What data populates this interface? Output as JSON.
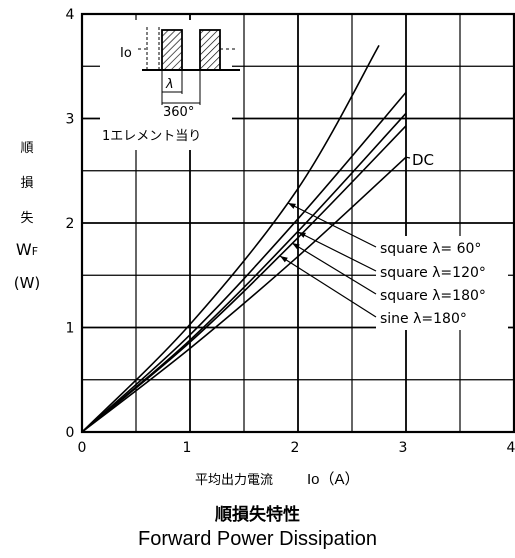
{
  "chart_data": {
    "type": "line",
    "title": "順損失特性",
    "subtitle": "Forward Power Dissipation",
    "xlabel": "平均出力電流",
    "xlabel_symbol": "Io（A）",
    "ylabel_chars": [
      "順",
      "損",
      "失"
    ],
    "ylabel_symbol": "WF",
    "ylabel_unit": "(W)",
    "xlim": [
      0,
      4
    ],
    "ylim": [
      0,
      4
    ],
    "x_ticks": [
      "0",
      "1",
      "2",
      "3",
      "4"
    ],
    "y_ticks": [
      "0",
      "1",
      "2",
      "3",
      "4"
    ],
    "grid": true,
    "series": [
      {
        "name": "square λ= 60°",
        "x": [
          0,
          1,
          2,
          2.75
        ],
        "y": [
          0,
          1.03,
          2.33,
          3.7
        ]
      },
      {
        "name": "square λ=120°",
        "x": [
          0,
          1,
          2,
          3
        ],
        "y": [
          0,
          0.93,
          2.04,
          3.25
        ]
      },
      {
        "name": "square λ=180°",
        "x": [
          0,
          1,
          2,
          3
        ],
        "y": [
          0,
          0.88,
          1.92,
          3.05
        ]
      },
      {
        "name": "sine λ=180°",
        "x": [
          0,
          1,
          2,
          3
        ],
        "y": [
          0,
          0.86,
          1.86,
          2.93
        ]
      },
      {
        "name": "DC",
        "x": [
          0,
          1,
          2,
          3
        ],
        "y": [
          0,
          0.8,
          1.68,
          2.63
        ]
      }
    ],
    "inset": {
      "label_io": "Io",
      "label_lambda": "λ",
      "label_period": "360°",
      "caption": "1エレメント当り"
    }
  }
}
